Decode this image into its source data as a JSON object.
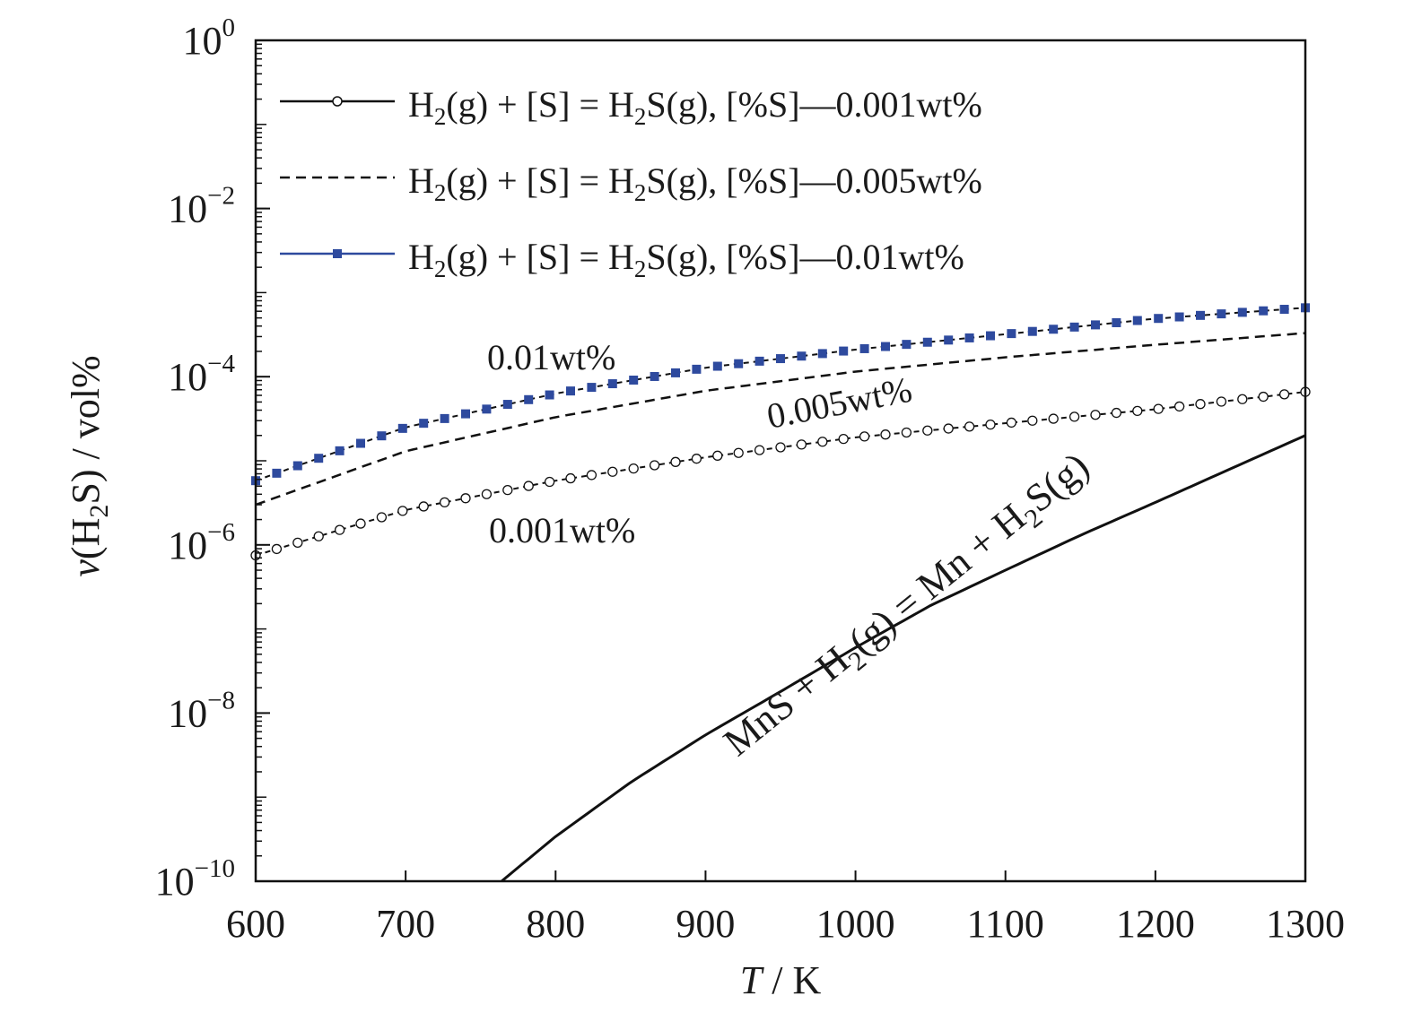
{
  "chart_data": {
    "type": "line",
    "xlabel": {
      "italic": "T",
      "rest": " / K"
    },
    "ylabel": {
      "pre": "v",
      "mid": "(H",
      "sub": "2",
      "post": "S) / vol%"
    },
    "xlim": [
      600,
      1300
    ],
    "xticks": [
      600,
      700,
      800,
      900,
      1000,
      1100,
      1200,
      1300
    ],
    "yscale": "log",
    "ylim": [
      1e-10,
      1
    ],
    "yticks": [
      {
        "base": "10",
        "exp": "0",
        "value": 1
      },
      {
        "base": "10",
        "exp": "−2",
        "value": 0.01
      },
      {
        "base": "10",
        "exp": "−4",
        "value": 0.0001
      },
      {
        "base": "10",
        "exp": "−6",
        "value": 1e-06
      },
      {
        "base": "10",
        "exp": "−8",
        "value": 1e-08
      },
      {
        "base": "10",
        "exp": "−10",
        "value": 1e-10
      }
    ],
    "colors": {
      "black": "#111111",
      "blue": "#2e4a9e"
    },
    "legend": {
      "placement": "top-left",
      "entries": [
        {
          "a": "H",
          "sub1": "2",
          "b": "(g) + [S] = H",
          "sub2": "2",
          "c": "S(g), [%S]—0.001wt%",
          "style": "solid-circle"
        },
        {
          "a": "H",
          "sub1": "2",
          "b": "(g) + [S] = H",
          "sub2": "2",
          "c": "S(g), [%S]—0.005wt%",
          "style": "dashed"
        },
        {
          "a": "H",
          "sub1": "2",
          "b": "(g) + [S] = H",
          "sub2": "2",
          "c": "S(g), [%S]—0.01wt%",
          "style": "blue-square"
        }
      ]
    },
    "series": [
      {
        "key": "s001",
        "style": "solid-circle",
        "x": [
          600,
          700,
          800,
          900,
          1000,
          1100,
          1200,
          1300
        ],
        "y": [
          7.5e-07,
          2.6e-06,
          5.8e-06,
          1.1e-05,
          1.9e-05,
          2.8e-05,
          4.1e-05,
          6.6e-05
        ]
      },
      {
        "key": "s005",
        "style": "dashed",
        "x": [
          600,
          700,
          800,
          900,
          1000,
          1100,
          1200,
          1300
        ],
        "y": [
          3e-06,
          1.3e-05,
          3.3e-05,
          6.8e-05,
          0.000115,
          0.00017,
          0.00024,
          0.00033
        ]
      },
      {
        "key": "s01",
        "style": "blue-square",
        "x": [
          600,
          700,
          800,
          900,
          1000,
          1100,
          1200,
          1300
        ],
        "y": [
          5.8e-06,
          2.5e-05,
          6.3e-05,
          0.000128,
          0.00021,
          0.00032,
          0.00049,
          0.00066
        ]
      },
      {
        "key": "mns",
        "style": "solid",
        "x": [
          764,
          800,
          850,
          900,
          950,
          1000,
          1050,
          1100,
          1150,
          1200,
          1250,
          1300
        ],
        "y": [
          1e-10,
          3.4e-10,
          1.5e-09,
          5.5e-09,
          1.8e-08,
          6e-08,
          1.9e-07,
          5e-07,
          1.3e-06,
          3.2e-06,
          8e-06,
          2e-05
        ]
      }
    ],
    "annotations": {
      "a001": "0.01wt%",
      "a005": "0.005wt%",
      "a0001": "0.001wt%",
      "mns": {
        "a": "MnS + H",
        "sub1": "2",
        "b": "(g) = Mn + H",
        "sub2": "2",
        "c": "S(g)"
      }
    }
  }
}
